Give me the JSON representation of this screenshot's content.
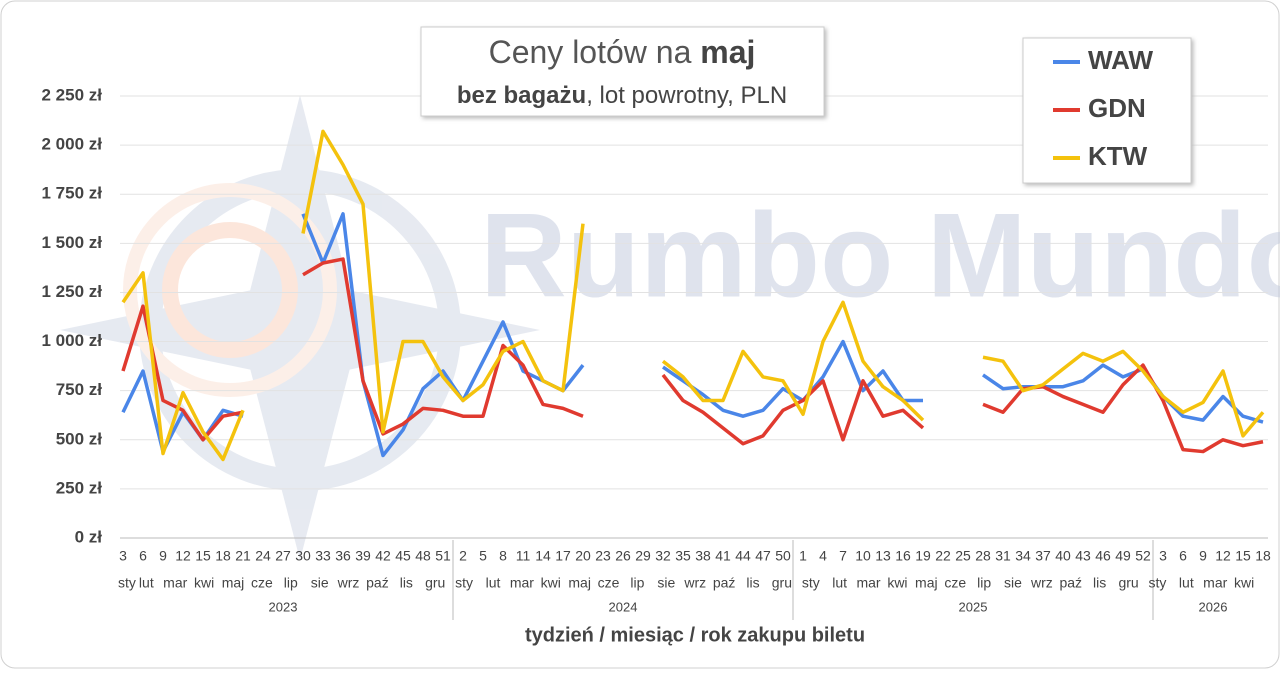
{
  "chart_data": {
    "type": "line",
    "title": [
      "Ceny lotów na ",
      "maj"
    ],
    "subtitle": [
      "bez bagażu",
      ", lot powrotny, PLN"
    ],
    "x_label": "tydzień / miesiąc / rok zakupu biletu",
    "watermark": "Rumbo Mundo",
    "categories": [
      3,
      6,
      9,
      12,
      15,
      18,
      21,
      24,
      27,
      30,
      33,
      36,
      39,
      42,
      45,
      48,
      51,
      2,
      5,
      8,
      11,
      14,
      17,
      20,
      23,
      26,
      29,
      32,
      35,
      38,
      41,
      44,
      47,
      50,
      1,
      4,
      7,
      10,
      13,
      16,
      19,
      22,
      25,
      28,
      31,
      34,
      37,
      40,
      43,
      46,
      49,
      52,
      3,
      6,
      9,
      12,
      15,
      18
    ],
    "months": [
      "sty",
      "lut",
      "mar",
      "kwi",
      "maj",
      "cze",
      "lip",
      "sie",
      "wrz",
      "paź",
      "lis",
      "gru"
    ],
    "years": [
      "2023",
      "2024",
      "2025",
      "2026"
    ],
    "series": [
      {
        "name": "WAW",
        "color": "#4a86e8",
        "values": [
          640,
          850,
          440,
          640,
          500,
          650,
          620,
          null,
          null,
          1650,
          1400,
          1650,
          800,
          420,
          550,
          760,
          850,
          700,
          900,
          1100,
          850,
          800,
          750,
          880,
          null,
          null,
          null,
          870,
          800,
          730,
          650,
          620,
          650,
          760,
          700,
          820,
          1000,
          750,
          850,
          700,
          700,
          null,
          null,
          830,
          760,
          770,
          770,
          770,
          800,
          880,
          820,
          860,
          720,
          620,
          600,
          720,
          620,
          590
        ]
      },
      {
        "name": "GDN",
        "color": "#e03a2f",
        "values": [
          850,
          1180,
          700,
          650,
          500,
          620,
          640,
          null,
          null,
          1340,
          1400,
          1420,
          800,
          530,
          580,
          660,
          650,
          620,
          620,
          980,
          880,
          680,
          660,
          620,
          null,
          null,
          null,
          830,
          700,
          640,
          560,
          480,
          520,
          650,
          700,
          800,
          500,
          800,
          620,
          650,
          560,
          null,
          null,
          680,
          640,
          760,
          770,
          720,
          680,
          640,
          780,
          880,
          700,
          450,
          440,
          500,
          470,
          490
        ]
      },
      {
        "name": "KTW",
        "color": "#f4c20d",
        "values": [
          1200,
          1350,
          430,
          740,
          540,
          400,
          650,
          null,
          null,
          1550,
          2070,
          1900,
          1700,
          540,
          1000,
          1000,
          820,
          700,
          780,
          950,
          1000,
          800,
          750,
          1600,
          null,
          null,
          null,
          900,
          820,
          700,
          700,
          950,
          820,
          800,
          630,
          1000,
          1200,
          900,
          770,
          700,
          600,
          null,
          null,
          920,
          900,
          750,
          780,
          860,
          940,
          900,
          950,
          850,
          720,
          640,
          690,
          850,
          520,
          640
        ]
      }
    ],
    "ylim": [
      0,
      2250
    ],
    "yticks": [
      {
        "value": 0,
        "label": "0 zł"
      },
      {
        "value": 250,
        "label": "250 zł"
      },
      {
        "value": 500,
        "label": "500 zł"
      },
      {
        "value": 750,
        "label": "750 zł"
      },
      {
        "value": 1000,
        "label": "1 000 zł"
      },
      {
        "value": 1250,
        "label": "1 250 zł"
      },
      {
        "value": 1500,
        "label": "1 500 zł"
      },
      {
        "value": 1750,
        "label": "1 750 zł"
      },
      {
        "value": 2000,
        "label": "2 000 zł"
      },
      {
        "value": 2250,
        "label": "2 250 zł"
      }
    ],
    "grid": true,
    "legend": "upper right"
  }
}
